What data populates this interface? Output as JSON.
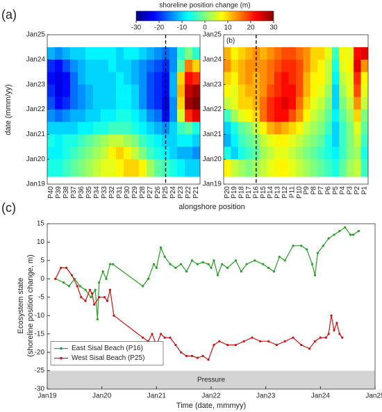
{
  "panel_label": "(a)",
  "colorbar": {
    "title": "shoreline position change (m)",
    "clim": [
      -30,
      30
    ],
    "cticks": [
      -30,
      -20,
      -10,
      0,
      10,
      20,
      30
    ],
    "colormap": [
      "#00007f",
      "#0000ff",
      "#007fff",
      "#00ffff",
      "#7fff7f",
      "#ffff00",
      "#ff7f00",
      "#ff0000",
      "#7f0000"
    ]
  },
  "shared": {
    "x_label": "alongshore position",
    "y_label": "date (mmm/yy)"
  },
  "chart_data": [
    {
      "type": "heatmap",
      "categories": [
        "P40",
        "P39",
        "P38",
        "P37",
        "P36",
        "P35",
        "P34",
        "P33",
        "P32",
        "P31",
        "P30",
        "P29",
        "P28",
        "P27",
        "P26",
        "P25",
        "P24",
        "P23",
        "P22",
        "P21"
      ],
      "marker_line": "P25",
      "ylim": [
        2019,
        2025
      ],
      "yticks": [
        {
          "value": 2019,
          "label": "Jan19"
        },
        {
          "value": 2020,
          "label": "Jan20"
        },
        {
          "value": 2021,
          "label": "Jan21"
        },
        {
          "value": 2022,
          "label": "Jan22"
        },
        {
          "value": 2023,
          "label": "Jan23"
        },
        {
          "value": 2024,
          "label": "Jan24"
        },
        {
          "value": 2025,
          "label": "Jan25"
        }
      ],
      "row_edges": [
        2024.5,
        2024,
        2023.5,
        2023,
        2022.5,
        2022,
        2021.5,
        2021,
        2020.5,
        2020,
        2019.3
      ],
      "values": [
        [
          -12,
          -14,
          -12,
          -10,
          -10,
          -8,
          -8,
          -8,
          -8,
          -10,
          -8,
          -8,
          -10,
          -12,
          -14,
          -16,
          -14,
          -5,
          0,
          -5
        ],
        [
          -20,
          -22,
          -18,
          -14,
          -12,
          -10,
          -10,
          -10,
          -8,
          -10,
          -10,
          -12,
          -14,
          -16,
          -18,
          -20,
          -14,
          -2,
          15,
          10
        ],
        [
          -22,
          -24,
          -22,
          -16,
          -12,
          -10,
          -10,
          -10,
          -10,
          -8,
          -10,
          -12,
          -14,
          -18,
          -20,
          -22,
          -12,
          10,
          22,
          20
        ],
        [
          -20,
          -24,
          -22,
          -16,
          -14,
          -12,
          -10,
          -10,
          -10,
          -8,
          -8,
          -10,
          -14,
          -18,
          -20,
          -22,
          -12,
          12,
          26,
          28
        ],
        [
          -18,
          -22,
          -20,
          -16,
          -14,
          -12,
          -10,
          -10,
          -10,
          -8,
          -8,
          -10,
          -14,
          -18,
          -20,
          -24,
          -14,
          10,
          28,
          30
        ],
        [
          -14,
          -16,
          -14,
          -12,
          -12,
          -10,
          -10,
          -8,
          -8,
          -6,
          -6,
          -8,
          -10,
          -14,
          -16,
          -22,
          -14,
          5,
          20,
          24
        ],
        [
          -10,
          -10,
          -10,
          -10,
          -8,
          -8,
          -6,
          -6,
          -4,
          -4,
          -4,
          -6,
          -8,
          -10,
          -12,
          -14,
          -10,
          -4,
          -2,
          -6
        ],
        [
          -6,
          -8,
          -6,
          -6,
          -4,
          -2,
          0,
          2,
          4,
          4,
          2,
          0,
          -4,
          -6,
          -8,
          -10,
          -10,
          -8,
          -8,
          -10
        ],
        [
          -8,
          -8,
          -6,
          -4,
          -2,
          0,
          2,
          4,
          8,
          10,
          8,
          4,
          0,
          -4,
          -6,
          -8,
          -10,
          -12,
          -12,
          -14
        ],
        [
          -6,
          -6,
          -4,
          -2,
          0,
          2,
          4,
          6,
          6,
          8,
          10,
          10,
          8,
          2,
          -2,
          -4,
          -6,
          -8,
          -10,
          -10
        ]
      ]
    },
    {
      "type": "heatmap",
      "panel_label": "(b)",
      "categories": [
        "P20",
        "P19",
        "P18",
        "P17",
        "P16",
        "P15",
        "P14",
        "P13",
        "P12",
        "P11",
        "P10",
        "P9",
        "P8",
        "P7",
        "P6",
        "P5",
        "P4",
        "P3",
        "P2",
        "P1"
      ],
      "marker_line": "P16",
      "ylim": [
        2019,
        2025
      ],
      "yticks": [
        {
          "value": 2019,
          "label": "Jan19"
        },
        {
          "value": 2020,
          "label": "Jan20"
        },
        {
          "value": 2021,
          "label": "Jan21"
        },
        {
          "value": 2022,
          "label": "Jan22"
        },
        {
          "value": 2023,
          "label": "Jan23"
        },
        {
          "value": 2024,
          "label": "Jan24"
        },
        {
          "value": 2025,
          "label": "Jan25"
        }
      ],
      "row_edges": [
        2024.5,
        2024,
        2023.5,
        2023,
        2022.5,
        2022,
        2021.5,
        2021,
        2020.5,
        2020,
        2019.3
      ],
      "values": [
        [
          12,
          8,
          10,
          12,
          14,
          12,
          14,
          16,
          18,
          18,
          16,
          14,
          10,
          10,
          6,
          -4,
          8,
          6,
          22,
          24
        ],
        [
          14,
          10,
          12,
          14,
          14,
          14,
          16,
          18,
          20,
          20,
          18,
          14,
          10,
          8,
          4,
          -6,
          6,
          8,
          24,
          14
        ],
        [
          10,
          8,
          12,
          14,
          12,
          14,
          16,
          20,
          22,
          20,
          18,
          12,
          8,
          8,
          4,
          -8,
          4,
          6,
          20,
          8
        ],
        [
          8,
          6,
          10,
          12,
          12,
          14,
          18,
          20,
          22,
          22,
          18,
          12,
          8,
          6,
          2,
          -10,
          2,
          6,
          18,
          6
        ],
        [
          4,
          6,
          10,
          10,
          12,
          16,
          20,
          22,
          24,
          22,
          16,
          10,
          6,
          4,
          0,
          -10,
          0,
          4,
          14,
          4
        ],
        [
          -4,
          2,
          6,
          8,
          10,
          16,
          20,
          22,
          22,
          18,
          14,
          8,
          4,
          2,
          -2,
          -8,
          -2,
          2,
          10,
          0
        ],
        [
          -10,
          -6,
          -2,
          0,
          4,
          8,
          12,
          14,
          12,
          10,
          8,
          4,
          2,
          0,
          -4,
          -10,
          -4,
          0,
          6,
          -2
        ],
        [
          -12,
          -8,
          -4,
          -2,
          0,
          4,
          6,
          8,
          8,
          6,
          4,
          2,
          0,
          -2,
          -6,
          -10,
          -4,
          0,
          4,
          -4
        ],
        [
          -6,
          -10,
          -6,
          -4,
          -2,
          2,
          4,
          6,
          6,
          4,
          2,
          0,
          -2,
          -4,
          -6,
          -8,
          -4,
          0,
          2,
          -6
        ],
        [
          8,
          4,
          2,
          0,
          2,
          4,
          6,
          8,
          8,
          6,
          4,
          2,
          0,
          -2,
          -4,
          -6,
          -2,
          2,
          4,
          -4
        ]
      ]
    },
    {
      "type": "line",
      "panel_label": "(c)",
      "x_label": "Time (date, mmmyy)",
      "y_label": [
        "Ecosystem state",
        "(shoreline position change, m)"
      ],
      "xlim": [
        2019,
        2025
      ],
      "xticks": [
        {
          "value": 2019,
          "label": "Jan19"
        },
        {
          "value": 2020,
          "label": "Jan20"
        },
        {
          "value": 2021,
          "label": "Jan21"
        },
        {
          "value": 2022,
          "label": "Jan22"
        },
        {
          "value": 2023,
          "label": "Jan23"
        },
        {
          "value": 2024,
          "label": "Jan24"
        },
        {
          "value": 2025,
          "label": "Jan25"
        }
      ],
      "ylim": [
        -30,
        15
      ],
      "yticks": [
        -30,
        -25,
        -20,
        -15,
        -10,
        -5,
        0,
        5,
        10,
        15
      ],
      "band": {
        "label": "Pressure",
        "range": [
          -30,
          -25
        ]
      },
      "legend": "lower left",
      "series": [
        {
          "name": "East Sisal Beach (P16)",
          "color": "#2a9d2a",
          "x": [
            2019.15,
            2019.3,
            2019.4,
            2019.5,
            2019.6,
            2019.7,
            2019.8,
            2019.88,
            2019.92,
            2019.95,
            2020.02,
            2020.08,
            2020.15,
            2020.2,
            2020.75,
            2020.85,
            2020.95,
            2021.0,
            2021.08,
            2021.15,
            2021.25,
            2021.35,
            2021.45,
            2021.55,
            2021.65,
            2021.75,
            2021.85,
            2021.95,
            2022.0,
            2022.05,
            2022.12,
            2022.2,
            2022.3,
            2022.45,
            2022.55,
            2022.65,
            2022.8,
            2022.95,
            2023.05,
            2023.15,
            2023.25,
            2023.35,
            2023.5,
            2023.65,
            2023.75,
            2023.85,
            2023.9,
            2023.95,
            2024.05,
            2024.15,
            2024.25,
            2024.35,
            2024.45,
            2024.55,
            2024.6,
            2024.7
          ],
          "values": [
            0,
            -1,
            -2,
            0,
            -2,
            -3,
            -5,
            -3,
            -11,
            -1,
            2,
            0,
            4,
            4,
            -2,
            0,
            4,
            3,
            8.5,
            6,
            4,
            3,
            4,
            2,
            5,
            4,
            4.5,
            4,
            3,
            5,
            1,
            4,
            3,
            5,
            2,
            4,
            5,
            4,
            3,
            2,
            6,
            5,
            9,
            9,
            8,
            4,
            1,
            7,
            9,
            11,
            12,
            13,
            14,
            12,
            12,
            13
          ]
        },
        {
          "name": "West Sisal Beach (P25)",
          "color": "#c81414",
          "x": [
            2019.15,
            2019.25,
            2019.35,
            2019.45,
            2019.55,
            2019.62,
            2019.7,
            2019.78,
            2019.82,
            2019.86,
            2019.95,
            2020.05,
            2020.1,
            2020.15,
            2020.22,
            2020.75,
            2020.85,
            2020.92,
            2021.0,
            2021.08,
            2021.15,
            2021.25,
            2021.35,
            2021.45,
            2021.55,
            2021.65,
            2021.75,
            2021.85,
            2021.95,
            2022.05,
            2022.15,
            2022.3,
            2022.45,
            2022.6,
            2022.75,
            2022.9,
            2023.05,
            2023.2,
            2023.35,
            2023.5,
            2023.65,
            2023.8,
            2023.9,
            2024.0,
            2024.1,
            2024.15,
            2024.2,
            2024.25,
            2024.3,
            2024.35,
            2024.4
          ],
          "values": [
            0,
            3,
            3,
            1,
            -2,
            -5,
            -6,
            -3,
            -4,
            -7,
            -5,
            -5,
            -6,
            -3,
            -10,
            -16,
            -17,
            -15,
            -18,
            -15,
            -16,
            -16,
            -18,
            -20,
            -21,
            -21,
            -21.5,
            -21,
            -22,
            -18,
            -17,
            -18,
            -18,
            -17,
            -16,
            -17,
            -17,
            -18,
            -17,
            -16,
            -18,
            -19,
            -17,
            -16,
            -16,
            -15,
            -10,
            -14,
            -12,
            -15,
            -16
          ]
        }
      ]
    }
  ]
}
